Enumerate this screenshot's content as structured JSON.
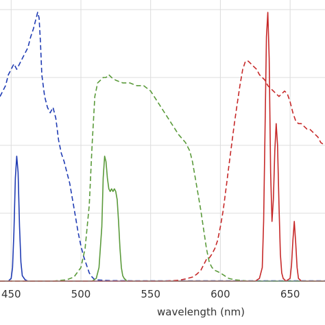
{
  "chart_data": {
    "type": "line",
    "title": "",
    "xlabel": "wavelength (nm)",
    "ylabel": "",
    "xlim": [
      442,
      675
    ],
    "ylim": [
      0,
      1.0
    ],
    "grid": true,
    "legend": "none",
    "x_ticks": [
      {
        "value": 450,
        "label": "450"
      },
      {
        "value": 500,
        "label": "500"
      },
      {
        "value": 550,
        "label": "550"
      },
      {
        "value": 600,
        "label": "600"
      },
      {
        "value": 650,
        "label": "650"
      }
    ],
    "y_gridlines": [
      0,
      0.25,
      0.5,
      0.75,
      1.0
    ],
    "series": [
      {
        "color": "#1f3bb3",
        "style": "dashed",
        "x": [
          442,
          444,
          446,
          448,
          450,
          452,
          454,
          456,
          458,
          460,
          462,
          464,
          466,
          468,
          469,
          470,
          471,
          472,
          474,
          476,
          478,
          480,
          482,
          484,
          486,
          488,
          490,
          492,
          494,
          496,
          498,
          500,
          502,
          504,
          506,
          508,
          510,
          520,
          540,
          560,
          580,
          600,
          620,
          640,
          660,
          675
        ],
        "y": [
          0.68,
          0.7,
          0.72,
          0.76,
          0.78,
          0.8,
          0.78,
          0.8,
          0.82,
          0.84,
          0.86,
          0.9,
          0.93,
          0.97,
          0.99,
          0.97,
          0.88,
          0.76,
          0.68,
          0.64,
          0.62,
          0.64,
          0.6,
          0.52,
          0.47,
          0.44,
          0.4,
          0.36,
          0.3,
          0.24,
          0.18,
          0.13,
          0.09,
          0.06,
          0.03,
          0.015,
          0.005,
          0.002,
          0.001,
          0.001,
          0.001,
          0.001,
          0.001,
          0.001,
          0.001,
          0.001
        ]
      },
      {
        "color": "#1f3bb3",
        "style": "solid",
        "x": [
          442,
          448,
          450,
          451,
          452,
          453,
          454,
          455,
          456,
          457,
          458,
          460,
          462,
          470,
          500,
          550,
          600,
          650,
          675
        ],
        "y": [
          0,
          0,
          0.01,
          0.05,
          0.18,
          0.38,
          0.46,
          0.4,
          0.2,
          0.07,
          0.02,
          0.005,
          0,
          0,
          0,
          0,
          0,
          0,
          0
        ]
      },
      {
        "color": "#5a9a3a",
        "style": "dashed",
        "x": [
          442,
          480,
          490,
          495,
          500,
          503,
          506,
          508,
          510,
          512,
          514,
          516,
          518,
          520,
          522,
          525,
          530,
          535,
          540,
          545,
          550,
          555,
          560,
          565,
          570,
          575,
          578,
          580,
          582,
          584,
          586,
          588,
          590,
          592,
          594,
          596,
          598,
          600,
          603,
          606,
          610,
          620,
          675
        ],
        "y": [
          0,
          0,
          0.005,
          0.015,
          0.05,
          0.12,
          0.28,
          0.5,
          0.68,
          0.73,
          0.74,
          0.75,
          0.75,
          0.76,
          0.75,
          0.74,
          0.73,
          0.73,
          0.72,
          0.72,
          0.7,
          0.66,
          0.62,
          0.58,
          0.54,
          0.51,
          0.48,
          0.44,
          0.38,
          0.32,
          0.26,
          0.19,
          0.12,
          0.07,
          0.05,
          0.04,
          0.035,
          0.03,
          0.02,
          0.01,
          0.005,
          0,
          0
        ]
      },
      {
        "color": "#5a9a3a",
        "style": "solid",
        "x": [
          442,
          508,
          511,
          513,
          515,
          516,
          517,
          518,
          519,
          520,
          521,
          522,
          523,
          524,
          525,
          526,
          527,
          528,
          529,
          530,
          531,
          533,
          540,
          675
        ],
        "y": [
          0,
          0,
          0.01,
          0.05,
          0.2,
          0.38,
          0.46,
          0.44,
          0.38,
          0.34,
          0.33,
          0.34,
          0.33,
          0.34,
          0.33,
          0.3,
          0.22,
          0.12,
          0.05,
          0.02,
          0.01,
          0,
          0,
          0
        ]
      },
      {
        "color": "#c62828",
        "style": "dashed",
        "x": [
          442,
          560,
          570,
          575,
          580,
          583,
          586,
          588,
          590,
          592,
          594,
          596,
          598,
          600,
          602,
          604,
          606,
          608,
          610,
          612,
          614,
          616,
          618,
          620,
          622,
          624,
          626,
          628,
          630,
          632,
          634,
          636,
          638,
          640,
          642,
          644,
          646,
          648,
          650,
          652,
          654,
          656,
          658,
          660,
          662,
          664,
          666,
          668,
          670,
          672,
          675
        ],
        "y": [
          0,
          0,
          0.003,
          0.008,
          0.015,
          0.025,
          0.04,
          0.06,
          0.08,
          0.085,
          0.1,
          0.12,
          0.15,
          0.2,
          0.26,
          0.34,
          0.42,
          0.5,
          0.58,
          0.65,
          0.72,
          0.78,
          0.81,
          0.81,
          0.8,
          0.79,
          0.78,
          0.76,
          0.75,
          0.74,
          0.72,
          0.71,
          0.7,
          0.69,
          0.68,
          0.69,
          0.7,
          0.69,
          0.66,
          0.62,
          0.59,
          0.58,
          0.58,
          0.57,
          0.56,
          0.56,
          0.55,
          0.54,
          0.53,
          0.51,
          0.5
        ]
      },
      {
        "color": "#c62828",
        "style": "solid",
        "x": [
          442,
          625,
          628,
          630,
          631,
          632,
          633,
          634,
          635,
          636,
          637,
          638,
          639,
          640,
          641,
          642,
          643,
          644,
          645,
          647,
          650,
          651,
          652,
          653,
          654,
          655,
          656,
          658,
          675
        ],
        "y": [
          0,
          0,
          0.01,
          0.05,
          0.22,
          0.55,
          0.9,
          0.99,
          0.82,
          0.4,
          0.22,
          0.3,
          0.48,
          0.58,
          0.5,
          0.28,
          0.1,
          0.03,
          0.01,
          0,
          0.01,
          0.06,
          0.15,
          0.22,
          0.14,
          0.05,
          0.01,
          0,
          0
        ]
      }
    ]
  }
}
